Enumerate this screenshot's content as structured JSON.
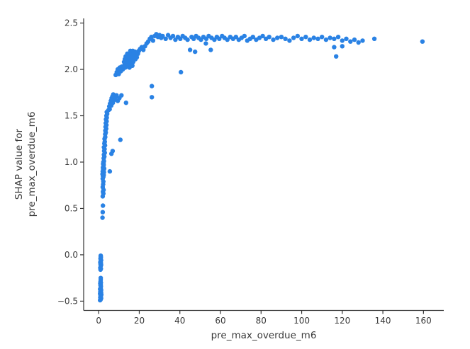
{
  "figure": {
    "background": "#ffffff"
  },
  "colors": {
    "marker": "#2a82e4",
    "axis": "#333333",
    "text": "#3a3a3a"
  },
  "chart_data": {
    "type": "scatter",
    "title": "",
    "xlabel": "pre_max_overdue_m6",
    "ylabel_lines": [
      "SHAP value for",
      "pre_max_overdue_m6"
    ],
    "xlim": [
      -7.4,
      170
    ],
    "ylim": [
      -0.6,
      2.55
    ],
    "grid": false,
    "legend_position": "none",
    "x_ticks": [
      0,
      20,
      40,
      60,
      80,
      100,
      120,
      140,
      160
    ],
    "x_tick_labels": [
      "0",
      "20",
      "40",
      "60",
      "80",
      "100",
      "120",
      "140",
      "160"
    ],
    "y_ticks": [
      2.5,
      2.0,
      1.5,
      1.0,
      0.5,
      0.0,
      -0.5
    ],
    "y_tick_labels": [
      "2.5",
      "2.0",
      "1.5",
      "1.0",
      "0.5",
      "0.0",
      "−0.5"
    ],
    "marker": {
      "color": "#2a82e4",
      "radius_px": 3.2
    },
    "series_name": "SHAP values",
    "points": [
      [
        0.7,
        -0.49
      ],
      [
        1.0,
        -0.48
      ],
      [
        1.2,
        -0.47
      ],
      [
        0.8,
        -0.46
      ],
      [
        1.1,
        -0.45
      ],
      [
        0.9,
        -0.44
      ],
      [
        1.3,
        -0.43
      ],
      [
        0.7,
        -0.42
      ],
      [
        1.0,
        -0.42
      ],
      [
        1.2,
        -0.41
      ],
      [
        0.8,
        -0.4
      ],
      [
        1.1,
        -0.39
      ],
      [
        0.9,
        -0.38
      ],
      [
        1.2,
        -0.38
      ],
      [
        0.7,
        -0.37
      ],
      [
        1.0,
        -0.36
      ],
      [
        1.1,
        -0.34
      ],
      [
        0.9,
        -0.33
      ],
      [
        1.0,
        -0.32
      ],
      [
        0.8,
        -0.31
      ],
      [
        1.1,
        -0.3
      ],
      [
        0.9,
        -0.29
      ],
      [
        1.0,
        -0.27
      ],
      [
        1.0,
        -0.25
      ],
      [
        0.9,
        -0.16
      ],
      [
        1.1,
        -0.15
      ],
      [
        0.8,
        -0.14
      ],
      [
        1.0,
        -0.12
      ],
      [
        1.2,
        -0.11
      ],
      [
        0.9,
        -0.1
      ],
      [
        1.1,
        -0.09
      ],
      [
        1.0,
        -0.09
      ],
      [
        0.8,
        -0.08
      ],
      [
        1.2,
        -0.06
      ],
      [
        1.0,
        -0.05
      ],
      [
        0.9,
        -0.04
      ],
      [
        1.1,
        -0.03
      ],
      [
        1.0,
        -0.02
      ],
      [
        1.0,
        -0.01
      ],
      [
        1.9,
        0.4
      ],
      [
        2.0,
        0.46
      ],
      [
        2.1,
        0.53
      ],
      [
        2.0,
        0.63
      ],
      [
        2.3,
        0.66
      ],
      [
        2.1,
        0.68
      ],
      [
        2.4,
        0.7
      ],
      [
        2.0,
        0.73
      ],
      [
        2.2,
        0.76
      ],
      [
        2.3,
        0.79
      ],
      [
        2.0,
        0.82
      ],
      [
        2.3,
        0.84
      ],
      [
        2.1,
        0.85
      ],
      [
        2.5,
        0.86
      ],
      [
        1.9,
        0.87
      ],
      [
        2.2,
        0.88
      ],
      [
        2.6,
        0.89
      ],
      [
        2.0,
        0.9
      ],
      [
        2.4,
        0.91
      ],
      [
        2.2,
        0.92
      ],
      [
        2.7,
        0.93
      ],
      [
        2.1,
        0.94
      ],
      [
        2.3,
        0.95
      ],
      [
        2.5,
        0.97
      ],
      [
        2.2,
        0.98
      ],
      [
        2.4,
        0.99
      ],
      [
        2.3,
        1.0
      ],
      [
        2.6,
        1.01
      ],
      [
        5.5,
        0.9
      ],
      [
        2.5,
        1.04
      ],
      [
        2.8,
        1.06
      ],
      [
        2.6,
        1.08
      ],
      [
        3.0,
        1.1
      ],
      [
        2.7,
        1.12
      ],
      [
        2.9,
        1.14
      ],
      [
        2.6,
        1.16
      ],
      [
        3.1,
        1.18
      ],
      [
        2.8,
        1.2
      ],
      [
        3.0,
        1.22
      ],
      [
        2.9,
        1.25
      ],
      [
        3.2,
        1.27
      ],
      [
        6.3,
        1.09
      ],
      [
        6.9,
        1.12
      ],
      [
        10.7,
        1.24
      ],
      [
        3.2,
        1.3
      ],
      [
        3.5,
        1.32
      ],
      [
        3.3,
        1.34
      ],
      [
        3.7,
        1.36
      ],
      [
        3.4,
        1.38
      ],
      [
        3.8,
        1.4
      ],
      [
        3.5,
        1.42
      ],
      [
        3.9,
        1.44
      ],
      [
        3.6,
        1.46
      ],
      [
        4.0,
        1.48
      ],
      [
        3.8,
        1.5
      ],
      [
        4.2,
        1.52
      ],
      [
        4.0,
        1.54
      ],
      [
        4.8,
        1.56
      ],
      [
        5.2,
        1.6
      ],
      [
        5.6,
        1.63
      ],
      [
        6.0,
        1.66
      ],
      [
        6.4,
        1.69
      ],
      [
        6.8,
        1.71
      ],
      [
        7.2,
        1.73
      ],
      [
        5.4,
        1.57
      ],
      [
        6.2,
        1.61
      ],
      [
        7.0,
        1.64
      ],
      [
        7.6,
        1.67
      ],
      [
        8.2,
        1.7
      ],
      [
        8.8,
        1.72
      ],
      [
        9.4,
        1.66
      ],
      [
        10.2,
        1.69
      ],
      [
        11.2,
        1.72
      ],
      [
        13.5,
        1.64
      ],
      [
        8.4,
        1.94
      ],
      [
        8.9,
        1.97
      ],
      [
        9.4,
        2.0
      ],
      [
        9.9,
        1.95
      ],
      [
        10.4,
        2.02
      ],
      [
        10.9,
        1.98
      ],
      [
        11.4,
        2.03
      ],
      [
        11.9,
        2.0
      ],
      [
        12.3,
        2.02
      ],
      [
        13.1,
        2.02
      ],
      [
        14.0,
        2.03
      ],
      [
        15.2,
        2.02
      ],
      [
        12.8,
        2.05
      ],
      [
        13.6,
        2.05
      ],
      [
        14.6,
        2.06
      ],
      [
        15.8,
        2.05
      ],
      [
        16.6,
        2.04
      ],
      [
        12.5,
        2.08
      ],
      [
        13.4,
        2.08
      ],
      [
        14.3,
        2.09
      ],
      [
        15.5,
        2.08
      ],
      [
        16.2,
        2.07
      ],
      [
        17.0,
        2.08
      ],
      [
        12.9,
        2.11
      ],
      [
        13.8,
        2.11
      ],
      [
        14.8,
        2.12
      ],
      [
        15.9,
        2.11
      ],
      [
        17.3,
        2.1
      ],
      [
        18.1,
        2.11
      ],
      [
        13.3,
        2.14
      ],
      [
        14.4,
        2.14
      ],
      [
        15.4,
        2.15
      ],
      [
        16.4,
        2.14
      ],
      [
        17.7,
        2.14
      ],
      [
        18.8,
        2.13
      ],
      [
        14.1,
        2.17
      ],
      [
        15.1,
        2.17
      ],
      [
        16.1,
        2.18
      ],
      [
        17.1,
        2.17
      ],
      [
        18.4,
        2.16
      ],
      [
        19.4,
        2.17
      ],
      [
        15.6,
        2.2
      ],
      [
        16.8,
        2.2
      ],
      [
        18.0,
        2.19
      ],
      [
        19.8,
        2.2
      ],
      [
        20.4,
        2.22
      ],
      [
        21.2,
        2.24
      ],
      [
        22.0,
        2.21
      ],
      [
        22.8,
        2.25
      ],
      [
        23.6,
        2.28
      ],
      [
        24.4,
        2.3
      ],
      [
        25.2,
        2.33
      ],
      [
        26.0,
        2.35
      ],
      [
        26.8,
        2.31
      ],
      [
        27.6,
        2.36
      ],
      [
        28.4,
        2.38
      ],
      [
        29.2,
        2.35
      ],
      [
        30.0,
        2.37
      ],
      [
        30.8,
        2.34
      ],
      [
        26.2,
        1.82
      ],
      [
        26.2,
        1.7
      ],
      [
        40.5,
        1.97
      ],
      [
        45.0,
        2.21
      ],
      [
        47.5,
        2.19
      ],
      [
        52.8,
        2.28
      ],
      [
        55.2,
        2.21
      ],
      [
        31.5,
        2.36
      ],
      [
        33.0,
        2.33
      ],
      [
        34.2,
        2.37
      ],
      [
        35.4,
        2.34
      ],
      [
        36.6,
        2.36
      ],
      [
        37.8,
        2.32
      ],
      [
        39.0,
        2.35
      ],
      [
        40.2,
        2.33
      ],
      [
        41.4,
        2.36
      ],
      [
        42.6,
        2.34
      ],
      [
        43.8,
        2.32
      ],
      [
        45.8,
        2.35
      ],
      [
        46.8,
        2.33
      ],
      [
        48.0,
        2.36
      ],
      [
        49.2,
        2.34
      ],
      [
        50.4,
        2.32
      ],
      [
        51.6,
        2.35
      ],
      [
        53.0,
        2.33
      ],
      [
        54.2,
        2.36
      ],
      [
        55.6,
        2.34
      ],
      [
        57.0,
        2.32
      ],
      [
        58.2,
        2.35
      ],
      [
        59.4,
        2.33
      ],
      [
        60.8,
        2.36
      ],
      [
        62.0,
        2.34
      ],
      [
        63.4,
        2.32
      ],
      [
        64.8,
        2.35
      ],
      [
        66.2,
        2.33
      ],
      [
        67.6,
        2.35
      ],
      [
        69.0,
        2.32
      ],
      [
        70.4,
        2.34
      ],
      [
        71.8,
        2.36
      ],
      [
        73.2,
        2.31
      ],
      [
        74.6,
        2.33
      ],
      [
        76.0,
        2.35
      ],
      [
        77.6,
        2.32
      ],
      [
        79.2,
        2.34
      ],
      [
        80.8,
        2.36
      ],
      [
        82.4,
        2.33
      ],
      [
        84.0,
        2.35
      ],
      [
        86.0,
        2.32
      ],
      [
        88.0,
        2.34
      ],
      [
        90.0,
        2.35
      ],
      [
        92.0,
        2.33
      ],
      [
        94.0,
        2.31
      ],
      [
        96.0,
        2.34
      ],
      [
        98.0,
        2.36
      ],
      [
        100.0,
        2.33
      ],
      [
        102.0,
        2.35
      ],
      [
        104.0,
        2.32
      ],
      [
        106.0,
        2.34
      ],
      [
        108.0,
        2.33
      ],
      [
        110.0,
        2.35
      ],
      [
        112.0,
        2.32
      ],
      [
        114.0,
        2.34
      ],
      [
        116.0,
        2.33
      ],
      [
        118.0,
        2.35
      ],
      [
        120.0,
        2.31
      ],
      [
        122.0,
        2.33
      ],
      [
        124.0,
        2.3
      ],
      [
        126.0,
        2.32
      ],
      [
        128.0,
        2.29
      ],
      [
        130.0,
        2.31
      ],
      [
        116.0,
        2.24
      ],
      [
        120.0,
        2.25
      ],
      [
        117.0,
        2.14
      ],
      [
        135.8,
        2.33
      ],
      [
        159.5,
        2.3
      ]
    ]
  }
}
